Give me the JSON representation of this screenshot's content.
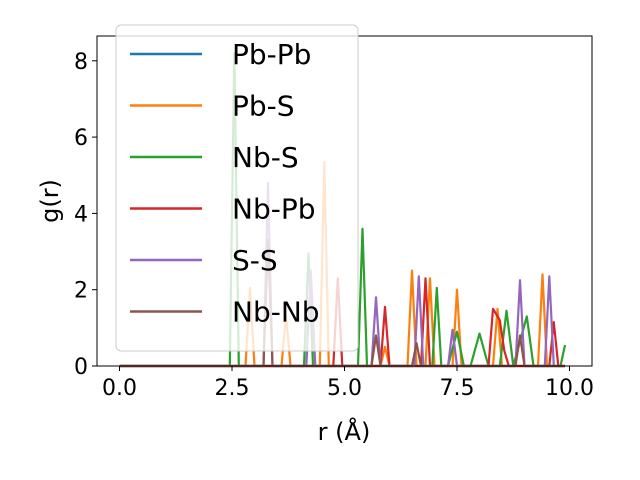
{
  "chart_data": {
    "type": "line",
    "xlabel": "r (Å)",
    "ylabel": "g(r)",
    "xlim": [
      -0.5,
      10.5
    ],
    "ylim": [
      0,
      8.65
    ],
    "xticks": [
      0.0,
      2.5,
      5.0,
      7.5,
      10.0
    ],
    "xtick_labels": [
      "0.0",
      "2.5",
      "5.0",
      "7.5",
      "10.0"
    ],
    "yticks": [
      0,
      2,
      4,
      6,
      8
    ],
    "ytick_labels": [
      "0",
      "2",
      "4",
      "6",
      "8"
    ],
    "grid": false,
    "legend_position": "top-left",
    "series": [
      {
        "name": "Pb-Pb",
        "color": "#1f77b4",
        "x": [
          0.0,
          9.9
        ],
        "y": [
          0.0,
          0.0
        ]
      },
      {
        "name": "Pb-S",
        "color": "#ff7f0e",
        "x": [
          0.0,
          2.8,
          2.9,
          3.0,
          3.1,
          3.6,
          3.7,
          3.8,
          4.45,
          4.55,
          4.65,
          5.8,
          5.9,
          6.0,
          6.4,
          6.5,
          6.6,
          6.8,
          6.9,
          7.0,
          7.4,
          7.5,
          7.6,
          8.3,
          8.4,
          8.5,
          9.3,
          9.4,
          9.5,
          9.9
        ],
        "y": [
          0,
          0,
          2.05,
          0,
          0,
          0,
          1.35,
          0,
          0,
          5.35,
          0,
          0,
          0.5,
          0,
          0,
          2.5,
          0,
          0,
          2.3,
          0,
          0,
          2.0,
          0,
          0,
          1.5,
          0,
          0,
          2.4,
          0,
          0
        ]
      },
      {
        "name": "Nb-S",
        "color": "#2ca02c",
        "x": [
          0.0,
          2.45,
          2.55,
          2.65,
          4.1,
          4.2,
          4.3,
          5.3,
          5.4,
          5.5,
          6.95,
          7.05,
          7.15,
          7.3,
          7.5,
          7.65,
          7.8,
          8.0,
          8.2,
          8.45,
          8.6,
          8.75,
          9.05,
          9.2,
          9.8,
          9.9
        ],
        "y": [
          0,
          0,
          8.2,
          0,
          0,
          2.95,
          0,
          0,
          3.6,
          0,
          0,
          2.05,
          0,
          0,
          0.9,
          0,
          0,
          0.85,
          0,
          0,
          1.45,
          0,
          1.3,
          0,
          0,
          0.55
        ]
      },
      {
        "name": "Nb-Pb",
        "color": "#d62728",
        "x": [
          0.0,
          4.75,
          4.85,
          4.95,
          5.8,
          5.9,
          6.0,
          6.7,
          6.8,
          6.9,
          8.2,
          8.3,
          8.45,
          8.55,
          8.65,
          9.55,
          9.65,
          9.75,
          9.9
        ],
        "y": [
          0,
          0,
          2.3,
          0,
          0,
          1.55,
          0,
          0,
          2.3,
          0,
          0,
          1.5,
          1.2,
          0.4,
          0,
          0,
          1.15,
          0,
          0
        ]
      },
      {
        "name": "S-S",
        "color": "#9467bd",
        "x": [
          0.0,
          3.2,
          3.3,
          3.4,
          4.15,
          4.25,
          4.35,
          5.6,
          5.7,
          5.8,
          6.55,
          6.65,
          6.75,
          7.3,
          7.4,
          7.5,
          8.8,
          8.9,
          9.0,
          9.45,
          9.55,
          9.65,
          9.9
        ],
        "y": [
          0,
          0,
          4.8,
          0,
          0,
          2.5,
          0,
          0,
          1.8,
          0,
          0,
          2.35,
          0,
          0,
          0.95,
          0,
          0,
          2.25,
          0,
          0,
          2.35,
          0,
          0
        ]
      },
      {
        "name": "Nb-Nb",
        "color": "#8c564b",
        "x": [
          0.0,
          3.2,
          3.3,
          3.4,
          5.6,
          5.7,
          5.8,
          6.5,
          6.6,
          6.7,
          8.8,
          8.9,
          9.0,
          9.9
        ],
        "y": [
          0,
          0,
          3.3,
          0,
          0,
          0.8,
          0,
          0,
          0.6,
          0,
          0,
          0.8,
          0,
          0
        ]
      }
    ]
  }
}
